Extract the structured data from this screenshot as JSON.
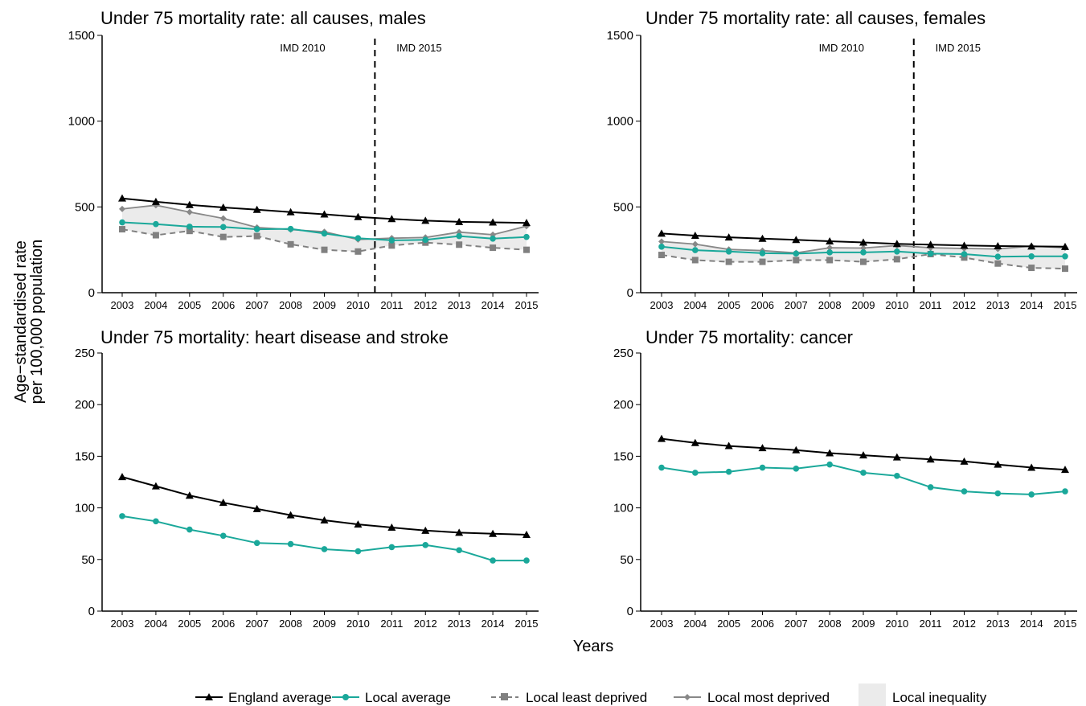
{
  "figure": {
    "ylabel_line1": "Age−standardised rate",
    "ylabel_line2": "per 100,000 population",
    "xlabel": "Years"
  },
  "legend": {
    "england": "England average",
    "local": "Local average",
    "least": "Local least deprived",
    "most": "Local most deprived",
    "inequality": "Local inequality"
  },
  "colors": {
    "england": "#000000",
    "local": "#1aa89a",
    "least": "#808080",
    "most": "#888888",
    "inequality": "#ebebeb"
  },
  "chart_data": [
    {
      "type": "line",
      "title": "Under 75 mortality rate: all causes, males",
      "x": [
        2003,
        2004,
        2005,
        2006,
        2007,
        2008,
        2009,
        2010,
        2011,
        2012,
        2013,
        2014,
        2015
      ],
      "ylim": [
        0,
        1500
      ],
      "yticks": [
        0,
        500,
        1000,
        1500
      ],
      "imd": {
        "left_label": "IMD 2010",
        "right_label": "IMD 2015",
        "boundary": 2010.5
      },
      "series": [
        {
          "key": "england",
          "name": "England average",
          "values": [
            550,
            530,
            512,
            497,
            484,
            470,
            457,
            442,
            430,
            420,
            413,
            410,
            407
          ]
        },
        {
          "key": "local",
          "name": "Local average",
          "values": [
            410,
            400,
            385,
            383,
            370,
            372,
            345,
            318,
            305,
            308,
            330,
            315,
            325
          ]
        },
        {
          "key": "least",
          "name": "Local least deprived",
          "values": [
            370,
            335,
            360,
            325,
            330,
            282,
            250,
            240,
            275,
            292,
            280,
            262,
            250
          ]
        },
        {
          "key": "most",
          "name": "Local most deprived",
          "values": [
            488,
            510,
            470,
            433,
            380,
            368,
            355,
            310,
            318,
            322,
            353,
            338,
            388
          ]
        }
      ]
    },
    {
      "type": "line",
      "title": "Under 75 mortality rate: all causes, females",
      "x": [
        2003,
        2004,
        2005,
        2006,
        2007,
        2008,
        2009,
        2010,
        2011,
        2012,
        2013,
        2014,
        2015
      ],
      "ylim": [
        0,
        1500
      ],
      "yticks": [
        0,
        500,
        1000,
        1500
      ],
      "imd": {
        "left_label": "IMD 2010",
        "right_label": "IMD 2015",
        "boundary": 2010.5
      },
      "series": [
        {
          "key": "england",
          "name": "England average",
          "values": [
            345,
            333,
            323,
            315,
            308,
            300,
            293,
            285,
            280,
            275,
            272,
            270,
            268
          ]
        },
        {
          "key": "local",
          "name": "Local average",
          "values": [
            268,
            248,
            240,
            230,
            228,
            235,
            235,
            240,
            228,
            225,
            210,
            212,
            212
          ]
        },
        {
          "key": "least",
          "name": "Local least deprived",
          "values": [
            220,
            190,
            180,
            180,
            190,
            190,
            180,
            195,
            225,
            205,
            170,
            145,
            140
          ]
        },
        {
          "key": "most",
          "name": "Local most deprived",
          "values": [
            298,
            283,
            252,
            245,
            232,
            262,
            260,
            275,
            262,
            258,
            255,
            272,
            262
          ]
        }
      ]
    },
    {
      "type": "line",
      "title": "Under 75 mortality: heart disease and stroke",
      "x": [
        2003,
        2004,
        2005,
        2006,
        2007,
        2008,
        2009,
        2010,
        2011,
        2012,
        2013,
        2014,
        2015
      ],
      "ylim": [
        0,
        250
      ],
      "yticks": [
        0,
        50,
        100,
        150,
        200,
        250
      ],
      "series": [
        {
          "key": "england",
          "name": "England average",
          "values": [
            130,
            121,
            112,
            105,
            99,
            93,
            88,
            84,
            81,
            78,
            76,
            75,
            74
          ]
        },
        {
          "key": "local",
          "name": "Local average",
          "values": [
            92,
            87,
            79,
            73,
            66,
            65,
            60,
            58,
            62,
            64,
            59,
            49,
            49
          ]
        }
      ]
    },
    {
      "type": "line",
      "title": "Under 75 mortality: cancer",
      "x": [
        2003,
        2004,
        2005,
        2006,
        2007,
        2008,
        2009,
        2010,
        2011,
        2012,
        2013,
        2014,
        2015
      ],
      "ylim": [
        0,
        250
      ],
      "yticks": [
        0,
        50,
        100,
        150,
        200,
        250
      ],
      "series": [
        {
          "key": "england",
          "name": "England average",
          "values": [
            167,
            163,
            160,
            158,
            156,
            153,
            151,
            149,
            147,
            145,
            142,
            139,
            137
          ]
        },
        {
          "key": "local",
          "name": "Local average",
          "values": [
            139,
            134,
            135,
            139,
            138,
            142,
            134,
            131,
            120,
            116,
            114,
            113,
            116
          ]
        }
      ]
    }
  ]
}
